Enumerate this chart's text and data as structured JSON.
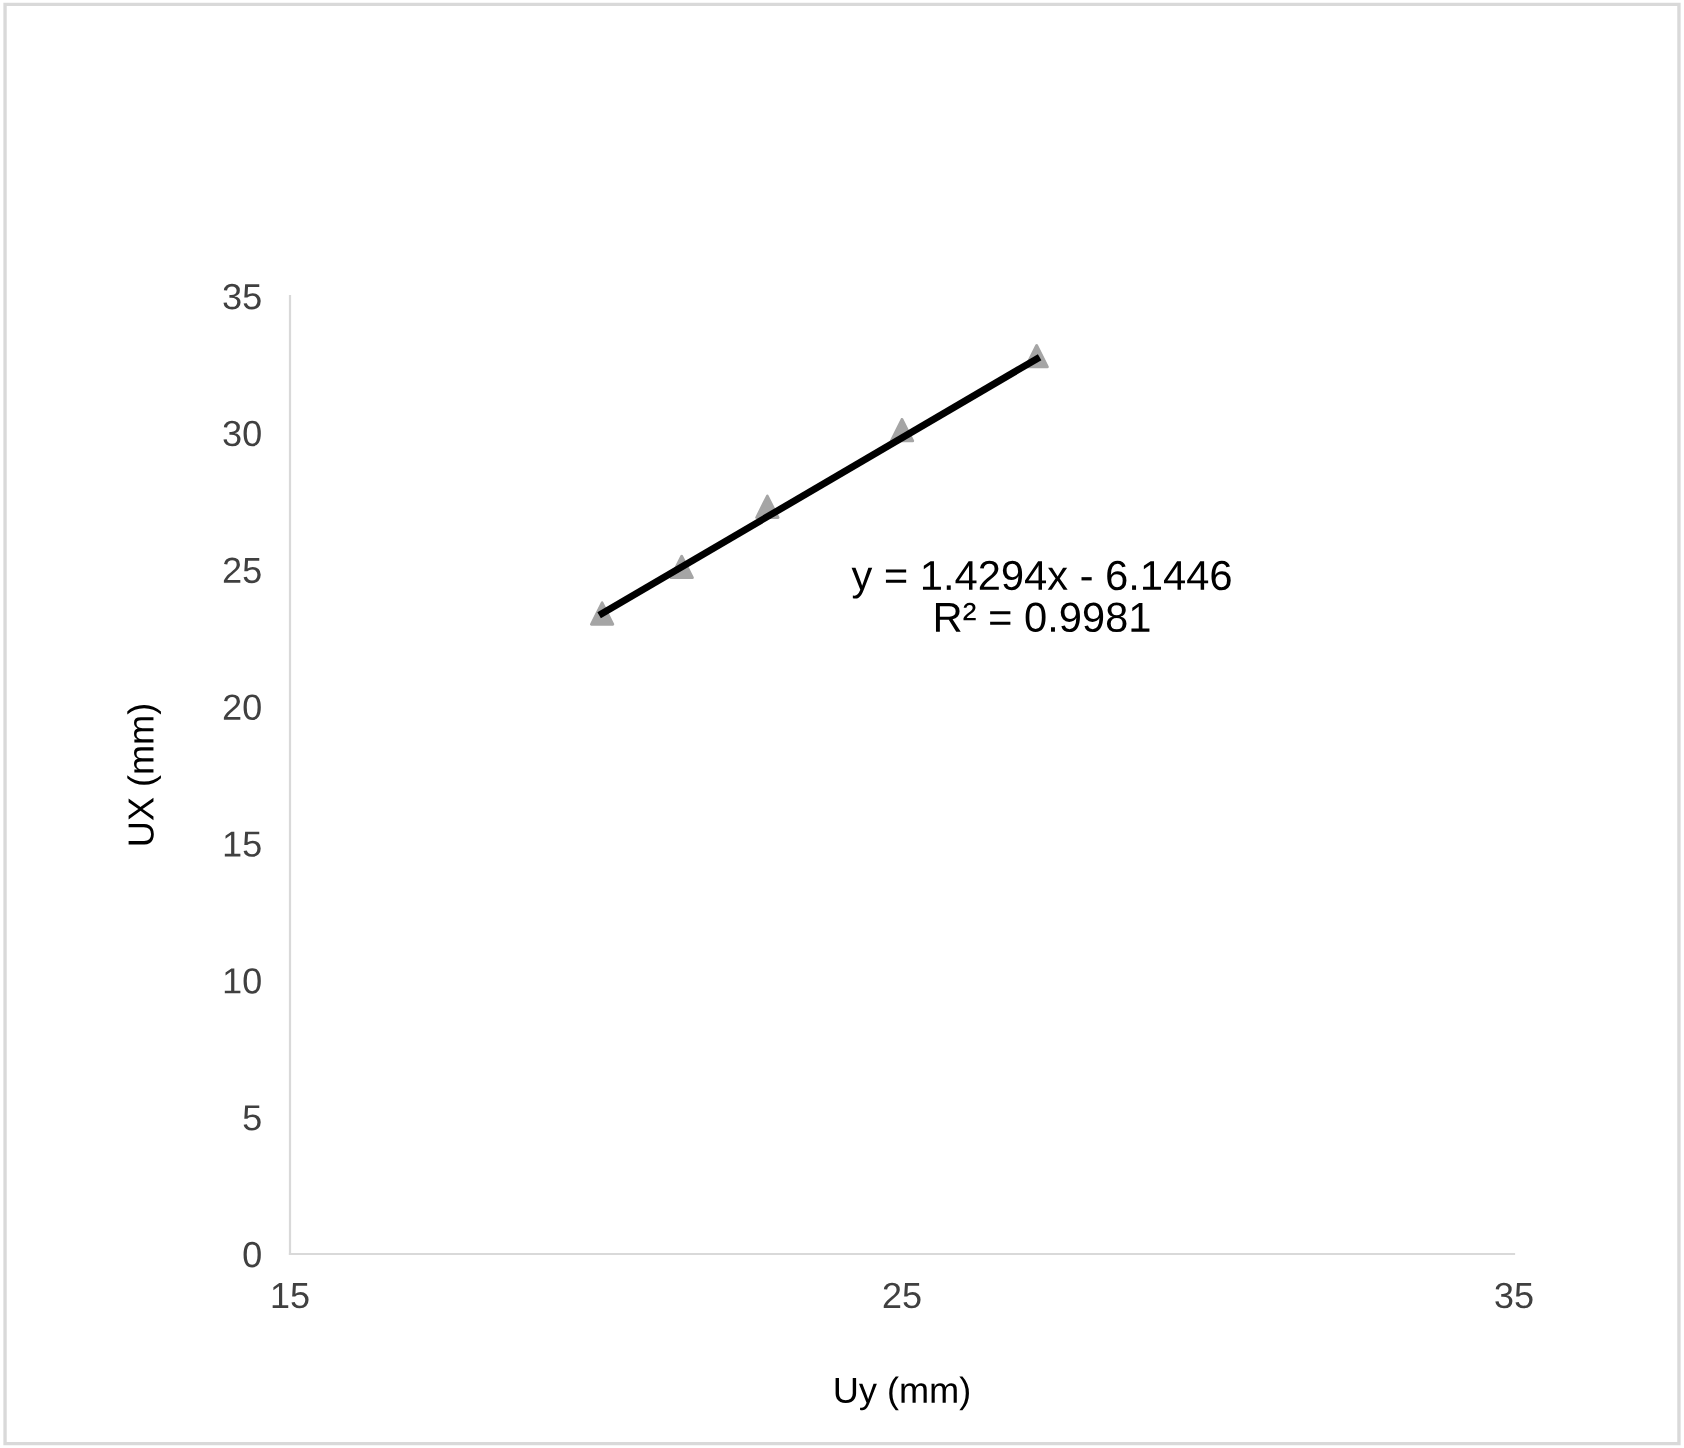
{
  "chart_data": {
    "type": "scatter",
    "xlabel": "Uy (mm)",
    "ylabel": "UX (mm)",
    "xlim": [
      15,
      35
    ],
    "xticks": [
      15,
      25,
      35
    ],
    "ylim": [
      0,
      35
    ],
    "yticks": [
      0,
      5,
      10,
      15,
      20,
      25,
      30,
      35
    ],
    "grid": false,
    "legend": false,
    "series": [
      {
        "color": "#a5a5a5",
        "marker": "triangle",
        "x": [
          20.1,
          21.4,
          22.8,
          25.0,
          27.2
        ],
        "values": [
          23.4,
          25.1,
          27.3,
          30.1,
          32.8
        ]
      },
      {
        "type": "line",
        "color": "#000000",
        "marker": "none",
        "x": [
          20.1,
          27.2
        ],
        "values": [
          23.4,
          32.7
        ]
      }
    ],
    "annotations": [
      "y = 1.4294x - 6.1446\nR² = 0.9981"
    ]
  }
}
